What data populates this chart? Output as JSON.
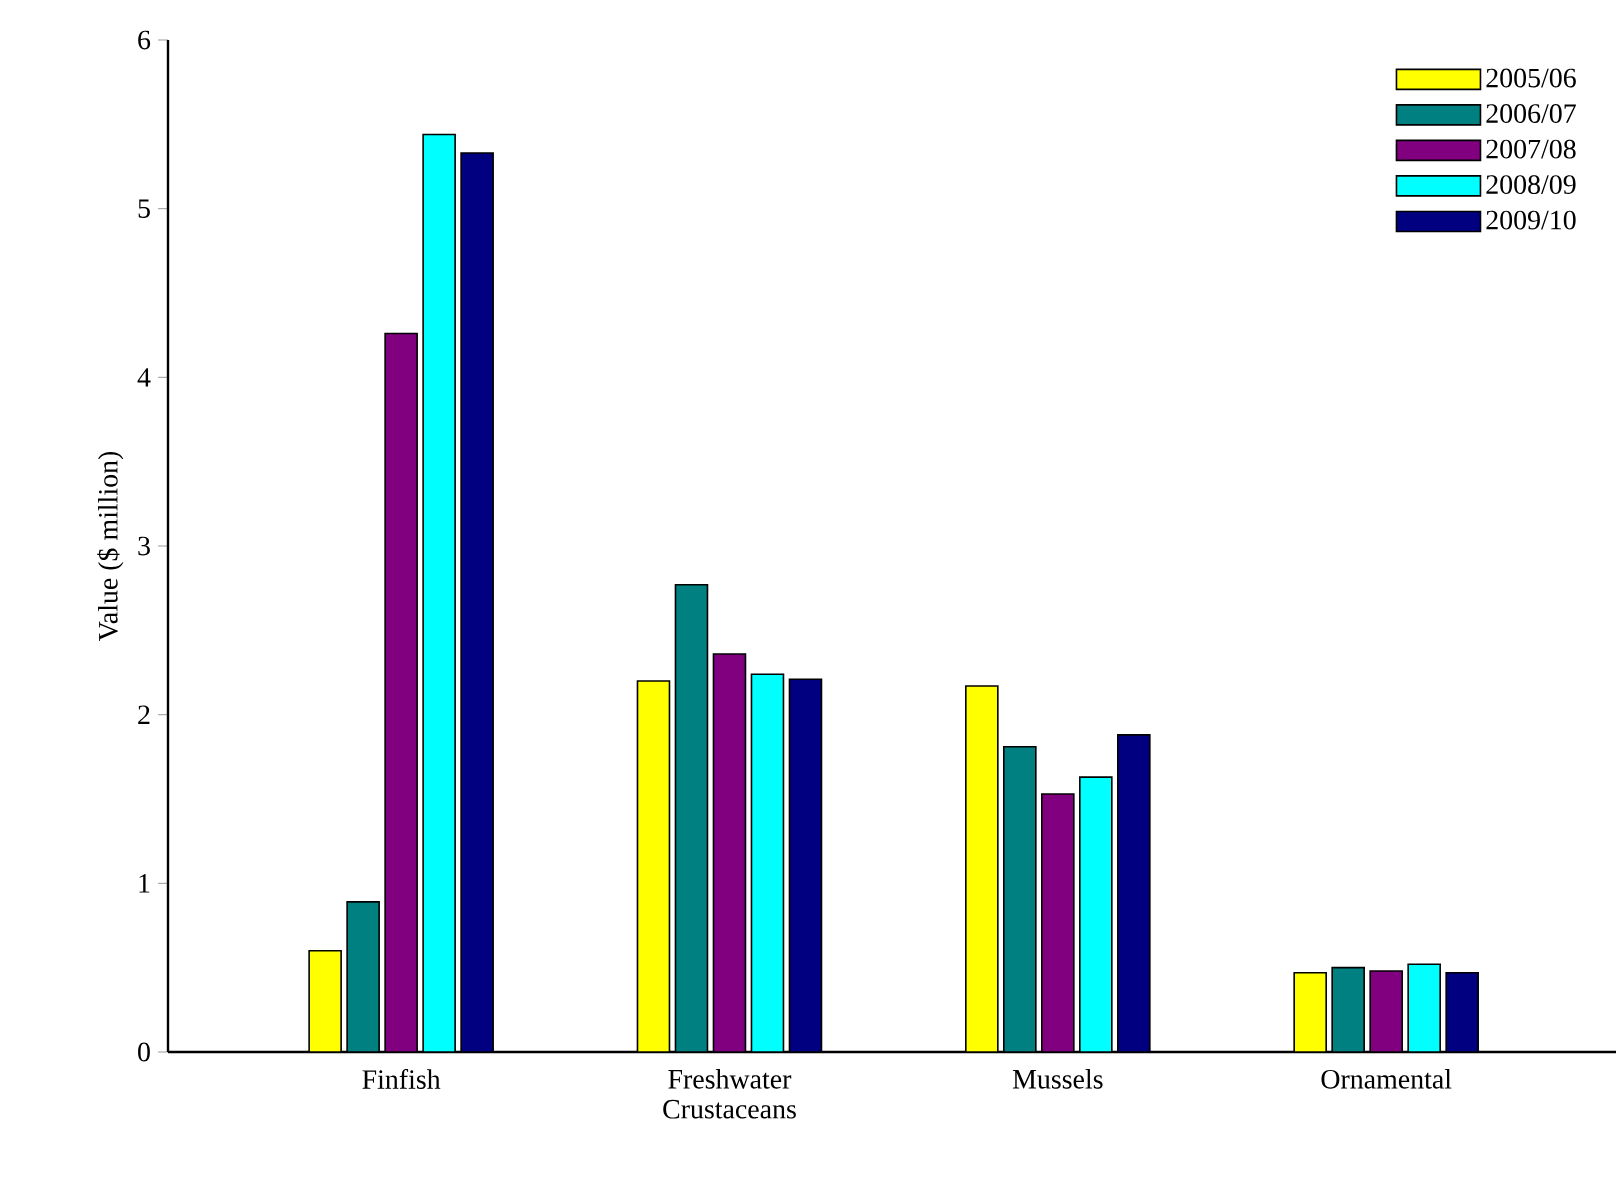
{
  "chart_data": {
    "type": "bar",
    "ylabel": "Value ($ million)",
    "categories": [
      "Finfish",
      "Freshwater\nCrustaceans",
      "Mussels",
      "Ornamental"
    ],
    "series": [
      {
        "name": "2005/06",
        "color": "#ffff00",
        "values": [
          0.6,
          2.2,
          2.17,
          0.47
        ]
      },
      {
        "name": "2006/07",
        "color": "#008080",
        "values": [
          0.89,
          2.77,
          1.81,
          0.5
        ]
      },
      {
        "name": "2007/08",
        "color": "#800080",
        "values": [
          4.26,
          2.36,
          1.53,
          0.48
        ]
      },
      {
        "name": "2008/09",
        "color": "#00ffff",
        "values": [
          5.44,
          2.24,
          1.63,
          0.52
        ]
      },
      {
        "name": "2009/10",
        "color": "#000080",
        "values": [
          5.33,
          2.21,
          1.88,
          0.47
        ]
      }
    ],
    "ylim": [
      0,
      6
    ],
    "yticks": [
      0,
      1,
      2,
      3,
      4,
      5,
      6
    ],
    "grid": false,
    "legend": "top right"
  }
}
